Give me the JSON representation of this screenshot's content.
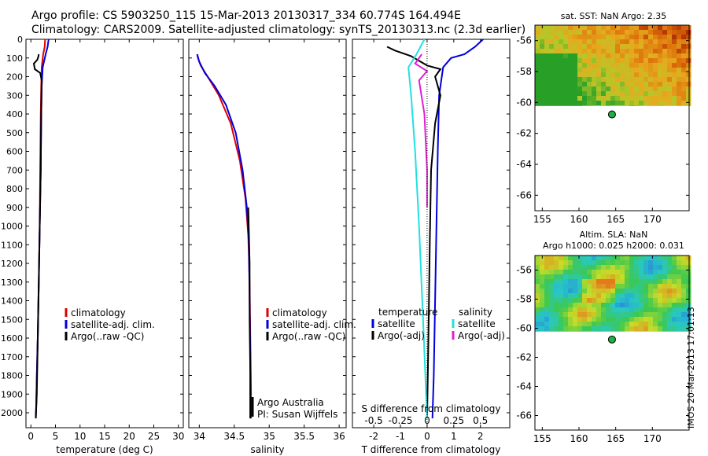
{
  "header": {
    "line1": "Argo profile: CS 5903250_115 15-Mar-2013 20130317_334 60.774S 164.494E",
    "line2": "Climatology: CARS2009. Satellite-adjusted climatology: synTS_20130313.nc (2.3d earlier)"
  },
  "stamp": "IMOS 20-Mar-2013 17:01:13",
  "colors": {
    "climatology": "#dd0000",
    "satellite": "#0000dd",
    "argo": "#000000",
    "cyan": "#22e0e0",
    "magenta": "#e020d0"
  },
  "chart_data": [
    {
      "type": "line",
      "xlabel": "temperature (deg C)",
      "ylabel": "",
      "xlim": [
        -1,
        31
      ],
      "ylim": [
        0,
        2080
      ],
      "xticks": [
        0,
        5,
        10,
        15,
        20,
        25,
        30
      ],
      "yticks": [
        0,
        100,
        200,
        300,
        400,
        500,
        600,
        700,
        800,
        900,
        1000,
        1100,
        1200,
        1300,
        1400,
        1500,
        1600,
        1700,
        1800,
        1900,
        2000
      ],
      "legend": [
        "climatology",
        "satellite-adj. clim.",
        "Argo(..raw -QC)"
      ],
      "legend_position": "lower-center",
      "series": [
        {
          "name": "climatology",
          "color": "#dd0000",
          "x": [
            2.9,
            2.8,
            2.5,
            2.2,
            2.1,
            2.0,
            1.9,
            1.8,
            1.6,
            1.4,
            1.2,
            1.1,
            1.0
          ],
          "y": [
            0,
            40,
            80,
            150,
            250,
            400,
            700,
            1000,
            1300,
            1600,
            1800,
            1950,
            2030
          ]
        },
        {
          "name": "satellite-adj. clim.",
          "color": "#0000dd",
          "x": [
            3.6,
            3.4,
            3.0,
            2.4,
            2.2,
            2.1,
            2.0,
            1.8,
            1.6,
            1.4,
            1.2,
            1.1,
            1.0
          ],
          "y": [
            0,
            40,
            80,
            150,
            250,
            400,
            700,
            1000,
            1300,
            1600,
            1800,
            1950,
            2030
          ]
        },
        {
          "name": "Argo(..raw -QC)",
          "color": "#000000",
          "x": [
            1.6,
            1.5,
            1.3,
            0.6,
            0.8,
            1.9,
            2.2,
            2.1,
            2.0,
            1.8,
            1.6,
            1.4,
            1.2,
            1.0
          ],
          "y": [
            80,
            95,
            110,
            130,
            160,
            180,
            220,
            400,
            700,
            1000,
            1300,
            1600,
            1900,
            2030
          ]
        }
      ]
    },
    {
      "type": "line",
      "xlabel": "salinity",
      "xlim": [
        33.85,
        36.1
      ],
      "ylim": [
        0,
        2080
      ],
      "xticks": [
        34,
        34.5,
        35,
        35.5,
        36
      ],
      "legend": [
        "climatology",
        "satellite-adj. clim.",
        "Argo(..raw -QC)"
      ],
      "legend_position": "lower-right",
      "annotations": [
        "Argo Australia",
        "PI: Susan Wijffels"
      ],
      "series": [
        {
          "name": "climatology",
          "color": "#dd0000",
          "x": [
            33.97,
            33.98,
            34.02,
            34.12,
            34.28,
            34.45,
            34.58,
            34.66,
            34.7,
            34.72,
            34.73,
            34.74,
            34.74
          ],
          "y": [
            80,
            100,
            140,
            200,
            300,
            450,
            650,
            850,
            1050,
            1300,
            1600,
            1900,
            2030
          ]
        },
        {
          "name": "satellite-adj. clim.",
          "color": "#0000dd",
          "x": [
            33.97,
            34.0,
            34.08,
            34.22,
            34.38,
            34.52,
            34.62,
            34.68,
            34.71,
            34.72,
            34.73,
            34.73
          ],
          "y": [
            80,
            120,
            180,
            250,
            350,
            500,
            700,
            900,
            1100,
            1400,
            1700,
            2030
          ]
        },
        {
          "name": "Argo(..raw -QC)",
          "color": "#000000",
          "x": [
            34.7,
            34.72,
            34.72,
            34.73,
            34.73
          ],
          "y": [
            900,
            1200,
            1500,
            1800,
            2030
          ]
        }
      ]
    },
    {
      "type": "line",
      "xlabel": "T difference from climatology",
      "top_axis_label": "S difference from climatology",
      "xlim": [
        -2.8,
        3.1
      ],
      "ylim": [
        0,
        2080
      ],
      "xticks": [
        -2,
        -1,
        0,
        1,
        2
      ],
      "top_ticks": [
        -0.5,
        -0.25,
        0,
        0.25,
        0.5
      ],
      "legend": [
        "satellite",
        "Argo(-adj)",
        "satellite",
        "Argo(-adj)"
      ],
      "legend_titles": [
        "temperature",
        "salinity"
      ],
      "legend_position": "lower-center",
      "series": [
        {
          "name": "satellite",
          "color": "#0000dd",
          "x": [
            2.1,
            1.8,
            1.4,
            0.9,
            0.6,
            0.45,
            0.4,
            0.35,
            0.3,
            0.25,
            0.2
          ],
          "y": [
            0,
            40,
            80,
            100,
            150,
            300,
            600,
            1000,
            1400,
            1800,
            2030
          ]
        },
        {
          "name": "Argo(-adj)",
          "color": "#000000",
          "x": [
            -1.5,
            -1.2,
            -0.6,
            0.0,
            0.5,
            0.3,
            0.5,
            0.3,
            0.15,
            0.1,
            0.05,
            0.0
          ],
          "y": [
            40,
            60,
            90,
            140,
            160,
            200,
            300,
            450,
            700,
            1100,
            1600,
            2030
          ]
        },
        {
          "name": "satellite",
          "color": "#22e0e0",
          "x": [
            -0.1,
            -0.4,
            -0.7,
            -0.6,
            -0.45,
            -0.3,
            -0.15,
            0.0
          ],
          "y": [
            0,
            80,
            150,
            300,
            600,
            1000,
            1500,
            2030
          ]
        },
        {
          "name": "Argo(-adj)",
          "color": "#e020d0",
          "x": [
            -0.2,
            -0.45,
            0.0,
            -0.3,
            -0.1,
            0.0,
            0.0
          ],
          "y": [
            80,
            130,
            170,
            220,
            400,
            700,
            900
          ]
        }
      ]
    },
    {
      "type": "heatmap",
      "title": "sat. SST: NaN Argo: 2.35",
      "xlim": [
        154,
        175
      ],
      "ylim": [
        -67,
        -55
      ],
      "xticks": [
        155,
        160,
        165,
        170
      ],
      "yticks": [
        -56,
        -58,
        -60,
        -62,
        -64,
        -66
      ],
      "marker": {
        "lon": 164.494,
        "lat": -60.774,
        "color": "#20b040"
      }
    },
    {
      "type": "heatmap",
      "title": "Altim. SLA: NaN",
      "subtitle": "Argo h1000: 0.025 h2000: 0.031",
      "xlim": [
        154,
        175
      ],
      "ylim": [
        -67,
        -55
      ],
      "xticks": [
        155,
        160,
        165,
        170
      ],
      "yticks": [
        -56,
        -58,
        -60,
        -62,
        -64,
        -66
      ],
      "marker": {
        "lon": 164.494,
        "lat": -60.774,
        "color": "#20b040"
      }
    }
  ]
}
